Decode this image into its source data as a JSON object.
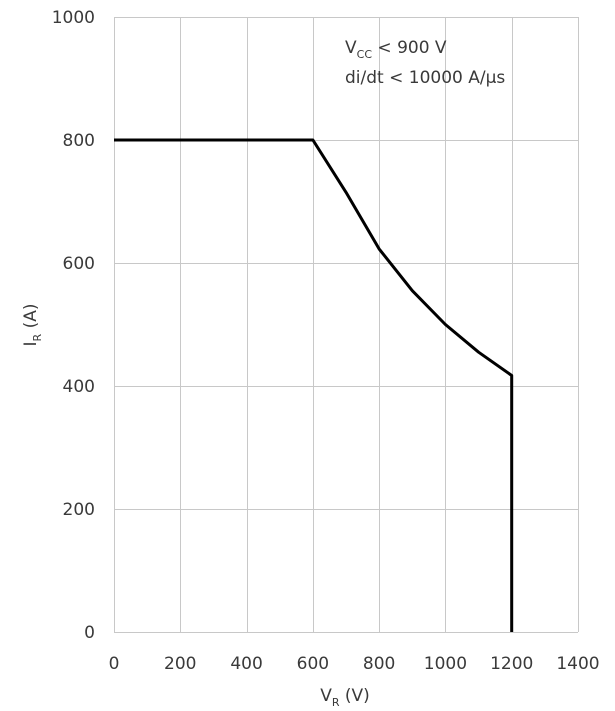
{
  "chart_data": {
    "type": "line",
    "xlabel": {
      "main": "V",
      "sub": "R",
      "suffix": " (V)"
    },
    "ylabel": {
      "main": "I",
      "sub": "R",
      "suffix": " (A)"
    },
    "xlim": [
      0,
      1400
    ],
    "ylim": [
      0,
      1000
    ],
    "xticks": [
      0,
      200,
      400,
      600,
      800,
      1000,
      1200,
      1400
    ],
    "yticks": [
      0,
      200,
      400,
      600,
      800,
      1000
    ],
    "grid": true,
    "annotations": [
      {
        "main": "V",
        "sub": "CC",
        "suffix": " < 900 V"
      },
      {
        "text": "di/dt < 10000 A/μs"
      }
    ],
    "series": [
      {
        "color": "#000000",
        "x": [
          0,
          600,
          700,
          800,
          900,
          1000,
          1100,
          1200,
          1200
        ],
        "y": [
          800,
          800,
          715,
          623,
          555,
          500,
          455,
          417,
          0
        ]
      }
    ]
  }
}
